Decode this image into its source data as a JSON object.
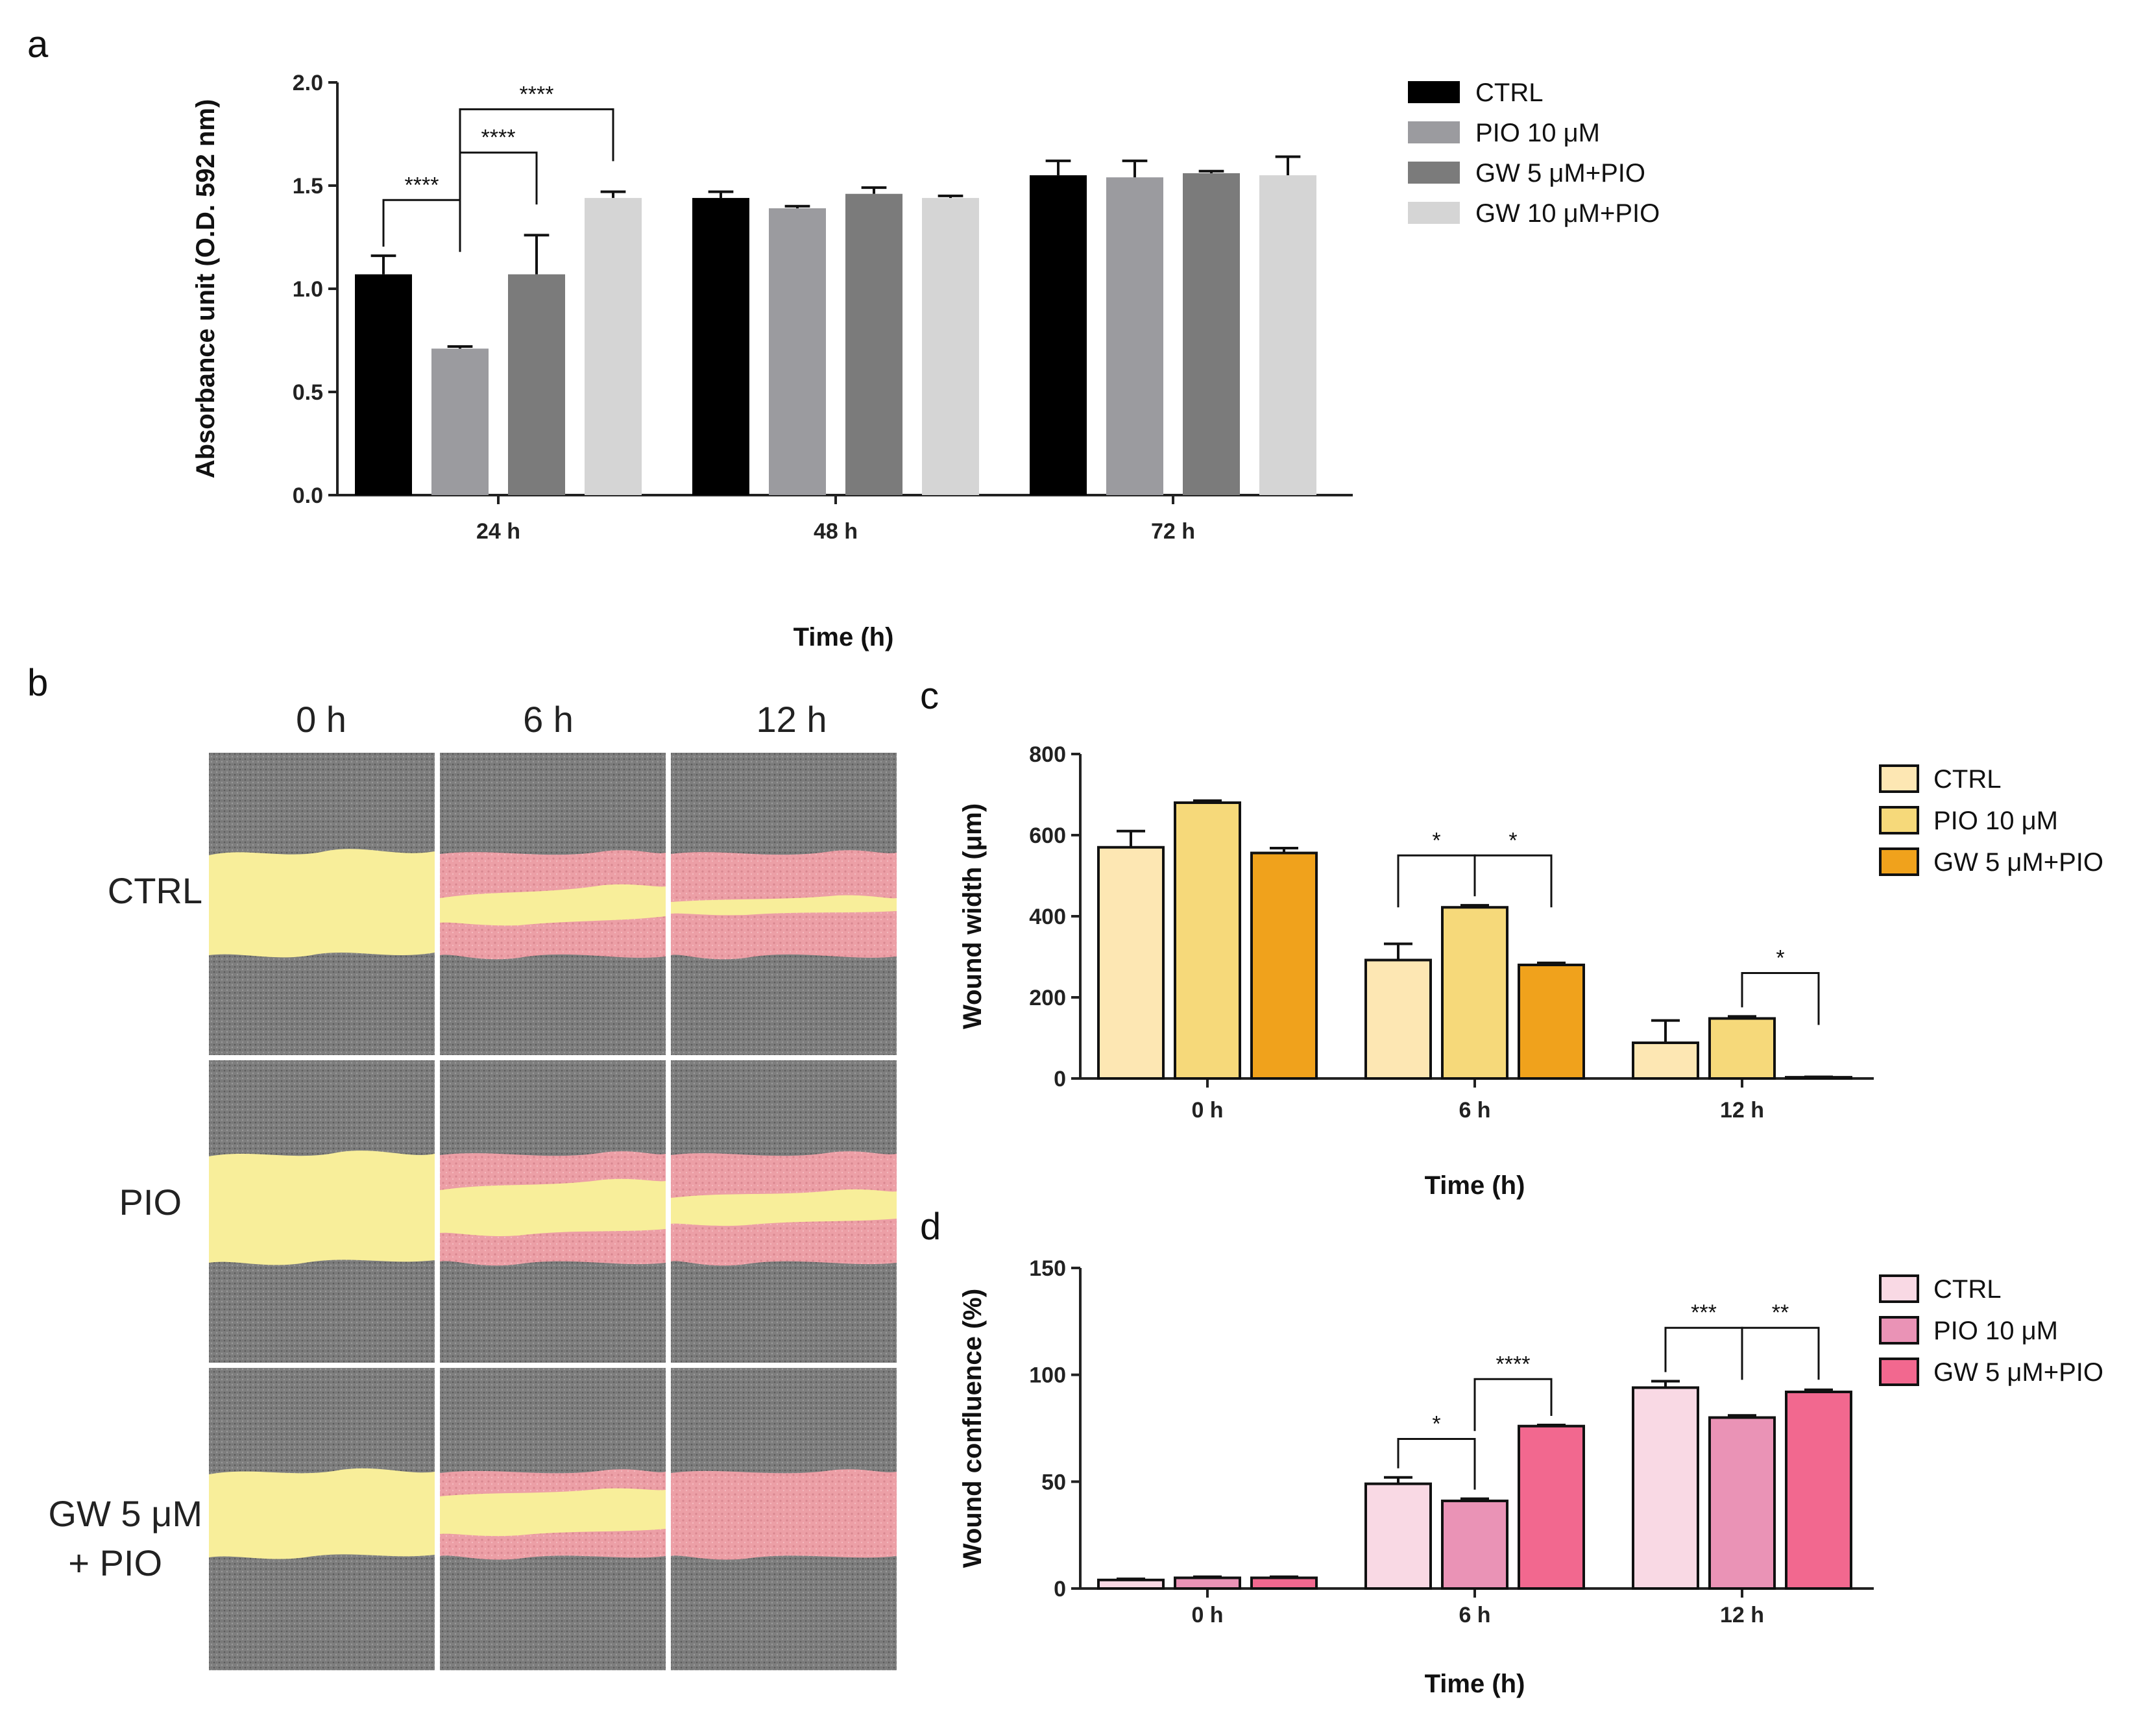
{
  "panels": {
    "a": "a",
    "b": "b",
    "c": "c",
    "d": "d"
  },
  "colors": {
    "a": [
      "#000000",
      "#9b9b9f",
      "#7b7b7b",
      "#d5d5d5"
    ],
    "c": [
      "#fde7b3",
      "#f6d97a",
      "#f0a21c"
    ],
    "d": [
      "#f9d9e4",
      "#ea93b6",
      "#f2688f"
    ]
  },
  "micrograph": {
    "columns": [
      "0 h",
      "6 h",
      "12 h"
    ],
    "rows": [
      "CTRL",
      "PIO",
      "GW 5 μM",
      "+ PIO"
    ]
  },
  "chart_data": [
    {
      "id": "a",
      "type": "bar",
      "title": "",
      "xlabel": "Time (h)",
      "ylabel": "Absorbance unit (O.D. 592 nm)",
      "ylim": [
        0,
        2.0
      ],
      "yticks": [
        "0.0",
        "0.5",
        "1.0",
        "1.5",
        "2.0"
      ],
      "categories": [
        "24 h",
        "48 h",
        "72 h"
      ],
      "series": [
        {
          "name": "CTRL",
          "values": [
            1.07,
            1.44,
            1.55
          ],
          "errors": [
            0.09,
            0.03,
            0.07
          ]
        },
        {
          "name": "PIO 10 μM",
          "values": [
            0.71,
            1.39,
            1.54
          ],
          "errors": [
            0.01,
            0.01,
            0.08
          ]
        },
        {
          "name": "GW 5 μM+PIO",
          "values": [
            1.07,
            1.46,
            1.56
          ],
          "errors": [
            0.19,
            0.03,
            0.01
          ]
        },
        {
          "name": "GW 10 μM+PIO",
          "values": [
            1.44,
            1.44,
            1.55
          ],
          "errors": [
            0.03,
            0.01,
            0.09
          ]
        }
      ],
      "significance": [
        {
          "label": "****",
          "cat": 0,
          "from": 0,
          "to": 1,
          "y": 1.43
        },
        {
          "label": "****",
          "cat": 0,
          "from": 1,
          "to": 2,
          "y": 1.66
        },
        {
          "label": "****",
          "cat": 0,
          "from": 1,
          "to": 3,
          "y": 1.87
        }
      ]
    },
    {
      "id": "c",
      "type": "bar",
      "title": "",
      "xlabel": "Time (h)",
      "ylabel": "Wound width (μm)",
      "ylim": [
        0,
        800
      ],
      "yticks": [
        "0",
        "200",
        "400",
        "600",
        "800"
      ],
      "categories": [
        "0 h",
        "6 h",
        "12 h"
      ],
      "series": [
        {
          "name": "CTRL",
          "values": [
            570,
            292,
            88
          ],
          "errors": [
            40,
            40,
            55
          ]
        },
        {
          "name": "PIO 10 μM",
          "values": [
            680,
            422,
            148
          ],
          "errors": [
            5,
            5,
            5
          ]
        },
        {
          "name": "GW 5 μM+PIO",
          "values": [
            556,
            280,
            3
          ],
          "errors": [
            12,
            5,
            1
          ]
        }
      ],
      "significance": [
        {
          "label": "*",
          "cat": 1,
          "from": 0,
          "to": 1,
          "y": 550
        },
        {
          "label": "*",
          "cat": 1,
          "from": 1,
          "to": 2,
          "y": 550
        },
        {
          "label": "*",
          "cat": 2,
          "from": 1,
          "to": 2,
          "y": 260
        }
      ]
    },
    {
      "id": "d",
      "type": "bar",
      "title": "",
      "xlabel": "Time (h)",
      "ylabel": "Wound confluence (%)",
      "ylim": [
        0,
        150
      ],
      "yticks": [
        "0",
        "50",
        "100",
        "150"
      ],
      "categories": [
        "0 h",
        "6 h",
        "12 h"
      ],
      "series": [
        {
          "name": "CTRL",
          "values": [
            4,
            49,
            94
          ],
          "errors": [
            0.5,
            3,
            3
          ]
        },
        {
          "name": "PIO 10 μM",
          "values": [
            5,
            41,
            80
          ],
          "errors": [
            0.5,
            1,
            1
          ]
        },
        {
          "name": "GW 5 μM+PIO",
          "values": [
            5,
            76,
            92
          ],
          "errors": [
            0.5,
            0.5,
            1
          ]
        }
      ],
      "significance": [
        {
          "label": "*",
          "cat": 1,
          "from": 0,
          "to": 1,
          "y": 70
        },
        {
          "label": "****",
          "cat": 1,
          "from": 1,
          "to": 2,
          "y": 98
        },
        {
          "label": "***",
          "cat": 2,
          "from": 0,
          "to": 1,
          "y": 122
        },
        {
          "label": "**",
          "cat": 2,
          "from": 1,
          "to": 2,
          "y": 122
        }
      ]
    }
  ]
}
